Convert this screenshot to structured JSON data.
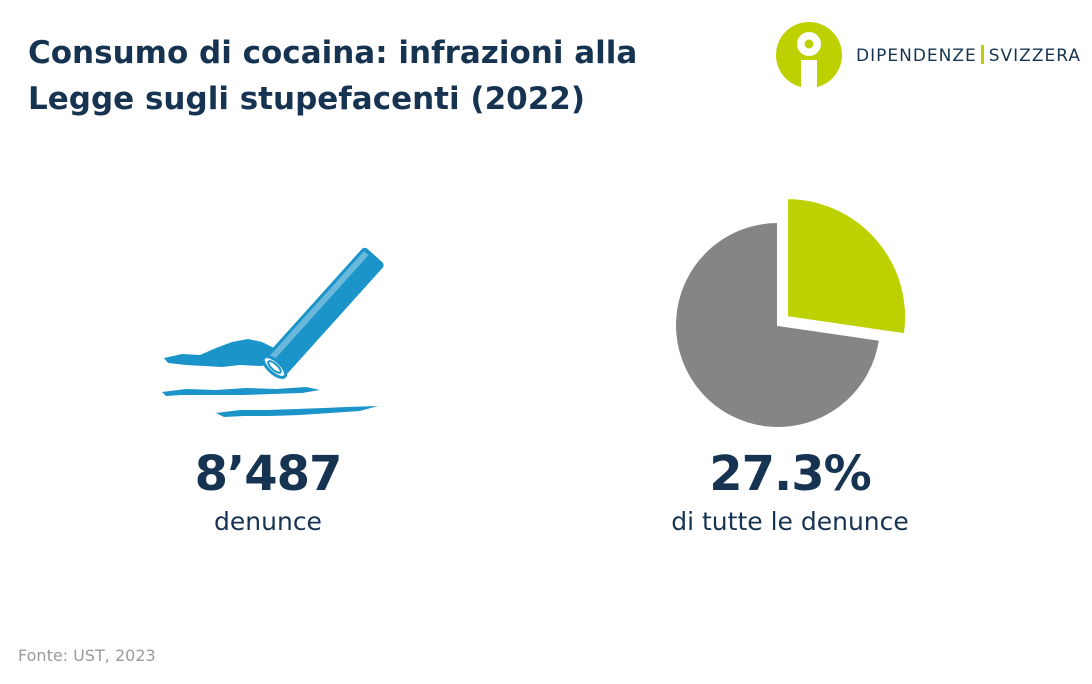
{
  "title": {
    "line1": "Consumo di cocaina: infrazioni alla",
    "line2": "Legge sugli stupefacenti (2022)"
  },
  "logo": {
    "left_text": "DIPENDENZE",
    "right_text": "SVIZZERA",
    "icon": "person-circle-logo",
    "color": "#bdd100"
  },
  "stats": {
    "left": {
      "value": "8’487",
      "label": "denunce",
      "icon": "cocaine-lines-and-straw-icon",
      "color": "#1b94c9"
    },
    "right": {
      "value": "27.3%",
      "label": "di tutte le denunce"
    }
  },
  "chart_data": {
    "type": "pie",
    "values": [
      27.3,
      72.7
    ],
    "colors": [
      "#bdd100",
      "#858585"
    ],
    "exploded": [
      true,
      false
    ]
  },
  "source": "Fonte: UST, 2023",
  "colors": {
    "heading": "#163451",
    "accent": "#bdd100",
    "pie_rest": "#858585",
    "illustration": "#1b94c9",
    "source": "#9a9a9a"
  }
}
